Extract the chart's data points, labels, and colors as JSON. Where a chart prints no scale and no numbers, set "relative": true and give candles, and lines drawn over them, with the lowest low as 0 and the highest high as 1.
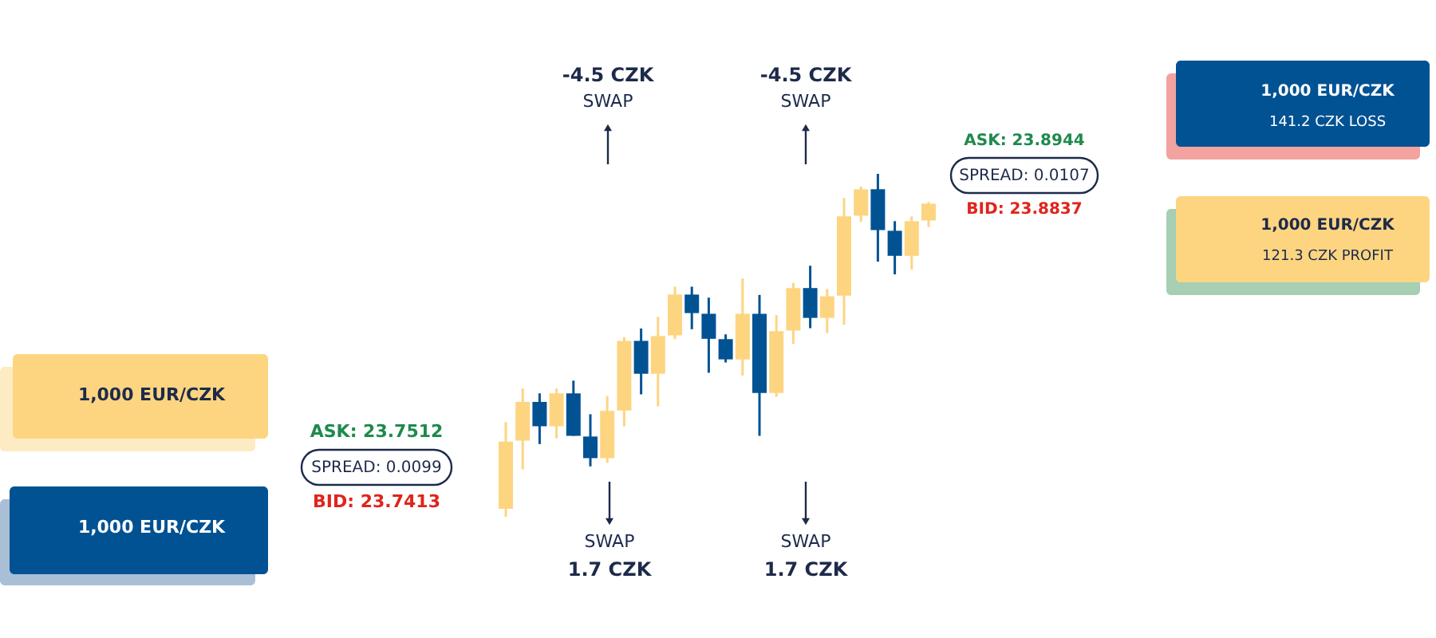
{
  "chart_data": {
    "type": "candlestick",
    "relative": true,
    "categories": [
      null,
      null,
      null,
      null,
      null,
      null,
      null,
      null,
      null,
      null,
      null,
      null,
      null,
      null,
      null,
      null,
      null,
      null,
      null,
      null,
      null,
      null,
      null,
      null,
      null,
      null
    ],
    "ohlc": [
      [
        0.023,
        0.276,
        0,
        0.219
      ],
      [
        0.222,
        0.374,
        0.138,
        0.335
      ],
      [
        0.335,
        0.36,
        0.212,
        0.264
      ],
      [
        0.264,
        0.374,
        0.229,
        0.36
      ],
      [
        0.36,
        0.397,
        0.236,
        0.236
      ],
      [
        0.234,
        0.299,
        0.147,
        0.171
      ],
      [
        0.171,
        0.352,
        0.157,
        0.309
      ],
      [
        0.31,
        0.524,
        0.264,
        0.513
      ],
      [
        0.513,
        0.549,
        0.357,
        0.417
      ],
      [
        0.417,
        0.583,
        0.322,
        0.527
      ],
      [
        0.529,
        0.671,
        0.518,
        0.648
      ],
      [
        0.648,
        0.671,
        0.547,
        0.594
      ],
      [
        0.592,
        0.639,
        0.42,
        0.519
      ],
      [
        0.518,
        0.532,
        0.45,
        0.459
      ],
      [
        0.459,
        0.695,
        0.412,
        0.592
      ],
      [
        0.592,
        0.647,
        0.236,
        0.361
      ],
      [
        0.361,
        0.588,
        0.35,
        0.541
      ],
      [
        0.543,
        0.682,
        0.504,
        0.667
      ],
      [
        0.667,
        0.732,
        0.55,
        0.58
      ],
      [
        0.58,
        0.664,
        0.536,
        0.643
      ],
      [
        0.645,
        0.93,
        0.56,
        0.876
      ],
      [
        0.878,
        0.963,
        0.86,
        0.955
      ],
      [
        0.955,
        1,
        0.744,
        0.836
      ],
      [
        0.834,
        0.862,
        0.707,
        0.761
      ],
      [
        0.761,
        0.876,
        0.721,
        0.862
      ],
      [
        0.864,
        0.918,
        0.845,
        0.913
      ]
    ],
    "colors": [
      "#fdd581",
      "#fdd581",
      "#005293",
      "#fdd581",
      "#005293",
      "#005293",
      "#fdd581",
      "#fdd581",
      "#005293",
      "#fdd581",
      "#fdd581",
      "#005293",
      "#005293",
      "#005293",
      "#fdd581",
      "#005293",
      "#fdd581",
      "#fdd581",
      "#005293",
      "#fdd581",
      "#fdd581",
      "#fdd581",
      "#005293",
      "#005293",
      "#fdd581",
      "#fdd581"
    ],
    "annotations": [
      "-4.5 CZK",
      "SWAP",
      "-4.5 CZK",
      "SWAP",
      "SWAP",
      "1.7 CZK",
      "SWAP",
      "1.7 CZK",
      "ASK: 23.7512",
      "SPREAD: 0.0099",
      "BID: 23.7413",
      "ASK: 23.8944",
      "SPREAD: 0.0107",
      "BID: 23.8837",
      "1,000 EUR/CZK",
      "1,000 EUR/CZK",
      "1,000 EUR/CZK",
      "141.2 CZK LOSS",
      "1,000 EUR/CZK",
      "121.3 CZK PROFIT"
    ]
  }
}
